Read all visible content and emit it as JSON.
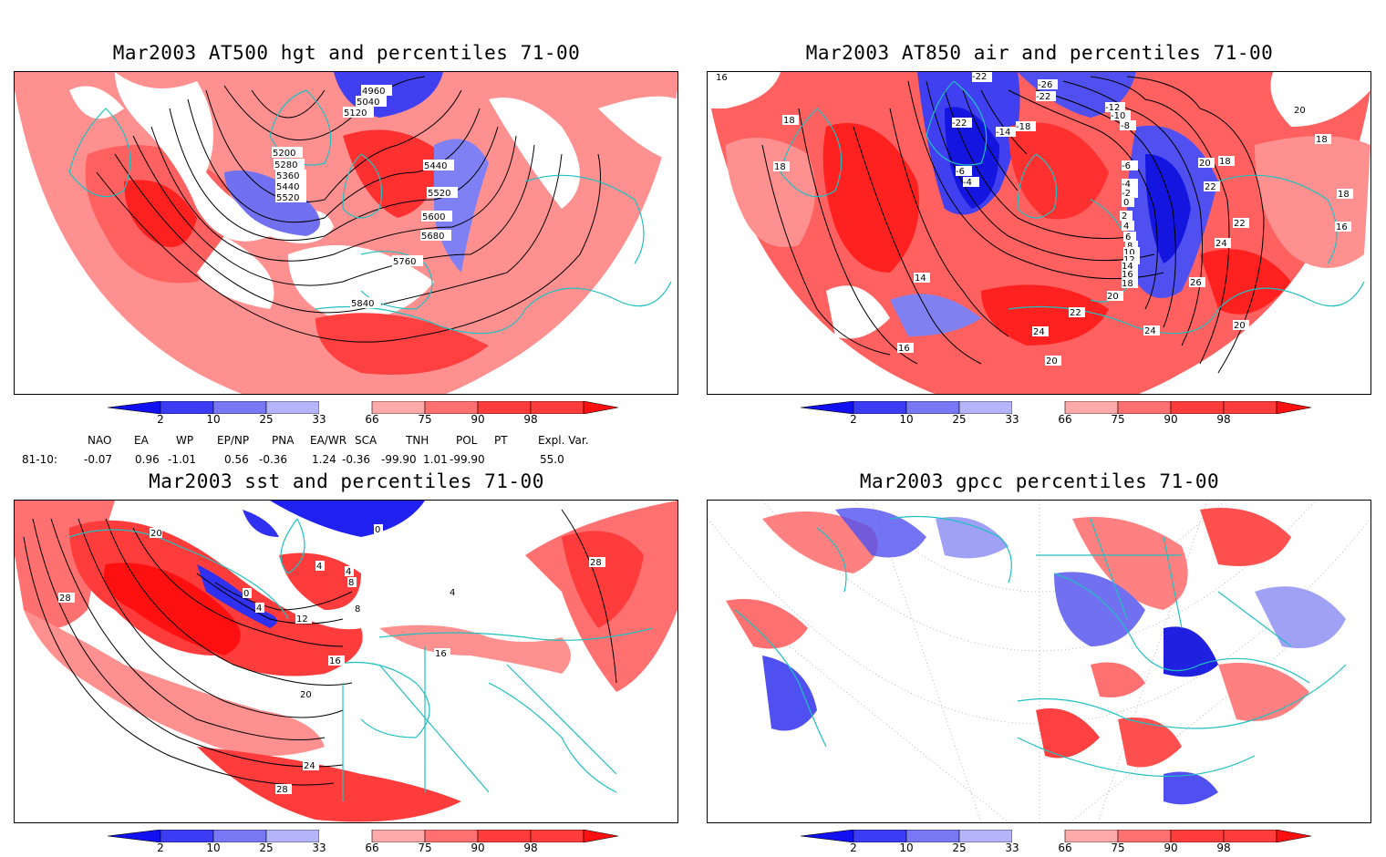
{
  "titles": {
    "p1": "Mar2003 AT500 hgt and percentiles 71-00",
    "p2": "Mar2003 AT850 air and percentiles 71-00",
    "p3": "Mar2003 sst and percentiles 71-00",
    "p4": "Mar2003 gpcc percentiles 71-00"
  },
  "colorbar": {
    "ticks": [
      "2",
      "10",
      "25",
      "33",
      "66",
      "75",
      "90",
      "98"
    ],
    "colors": [
      "#1010f0",
      "#3c3cf5",
      "#7878f5",
      "#b4b4fa",
      "#ffffff",
      "#ffaaaa",
      "#ff7070",
      "#ff3c3c",
      "#ff1010"
    ]
  },
  "map_colors": {
    "coast": "#20c0c0",
    "warm": "#ff3c3c",
    "warm_light": "#ff9090",
    "cold": "#4646f0",
    "cold_light": "#a0a0f5",
    "contour": "#000000"
  },
  "indices": {
    "headers": [
      "NAO",
      "EA",
      "WP",
      "EP/NP",
      "PNA",
      "EA/WR",
      "SCA",
      "TNH",
      "POL",
      "PT",
      "Expl. Var."
    ],
    "row_label": "81-10:",
    "values": [
      "-0.07",
      "0.96",
      "-1.01",
      "0.56",
      "-0.36",
      "1.24",
      "-0.36",
      "-99.90",
      "1.01",
      "-99.90",
      "55.0"
    ]
  },
  "contour_labels": {
    "p1": [
      "4960",
      "5040",
      "5120",
      "5200",
      "5280",
      "5360",
      "5440",
      "5520",
      "5440",
      "5520",
      "5600",
      "5680",
      "5760",
      "5840"
    ],
    "p2": [
      "16",
      "18",
      "18",
      "-22",
      "-26",
      "-22",
      "-12",
      "-10",
      "-8",
      "-22",
      "-14",
      "-18",
      "-6",
      "-4",
      "-6",
      "-4",
      "-2",
      "0",
      "2",
      "4",
      "6",
      "8",
      "10",
      "12",
      "14",
      "16",
      "18",
      "20",
      "20",
      "22",
      "22",
      "24",
      "26",
      "24",
      "22",
      "24",
      "20",
      "20",
      "14",
      "16",
      "18",
      "16",
      "18",
      "20",
      "18"
    ],
    "p3": [
      "20",
      "28",
      "0",
      "4",
      "4",
      "4",
      "8",
      "12",
      "16",
      "20",
      "24",
      "28",
      "8",
      "0",
      "16",
      "4",
      "28"
    ]
  }
}
